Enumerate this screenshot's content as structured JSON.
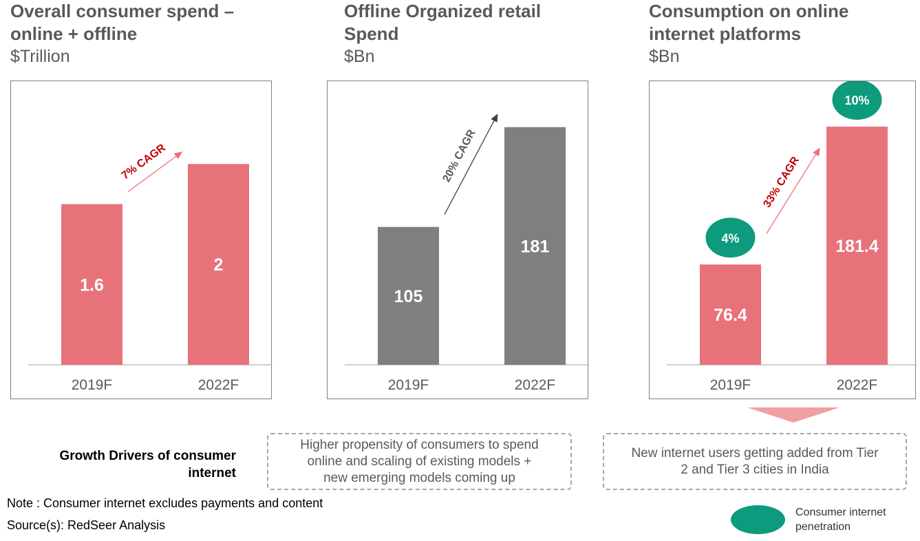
{
  "colors": {
    "red_bar": "#e8727a",
    "grey_bar": "#7f7f7f",
    "teal": "#0e9a7c",
    "cagr_red": "#c00000",
    "cagr_grey": "#595959"
  },
  "chart_data": [
    {
      "type": "bar",
      "title": "Overall consumer spend – online + offline",
      "unit": "$Trillion",
      "categories": [
        "2019F",
        "2022F"
      ],
      "values": [
        1.6,
        2
      ],
      "data_labels": [
        "1.6",
        "2"
      ],
      "annotation": "7% CAGR",
      "ylim": [
        0,
        2.55
      ],
      "bar_color": "#e8727a"
    },
    {
      "type": "bar",
      "title": "Offline Organized retail Spend",
      "unit": "$Bn",
      "categories": [
        "2019F",
        "2022F"
      ],
      "values": [
        105,
        181
      ],
      "data_labels": [
        "105",
        "181"
      ],
      "annotation": "20% CAGR",
      "ylim": [
        0,
        195
      ],
      "bar_color": "#7f7f7f"
    },
    {
      "type": "bar",
      "title": "Consumption on online internet platforms",
      "unit": "$Bn",
      "categories": [
        "2019F",
        "2022F"
      ],
      "values": [
        76.4,
        181.4
      ],
      "data_labels": [
        "76.4",
        "181.4"
      ],
      "annotation": "33% CAGR",
      "penetration": [
        "4%",
        "10%"
      ],
      "ylim": [
        0,
        195
      ],
      "bar_color": "#e8727a"
    }
  ],
  "titles": [
    {
      "line1": "Overall consumer spend –",
      "line2": "online + offline",
      "unit": "$Trillion"
    },
    {
      "line1": "Offline Organized retail",
      "line2": "Spend",
      "unit": "$Bn"
    },
    {
      "line1": "Consumption on online",
      "line2": "internet platforms",
      "unit": "$Bn"
    }
  ],
  "growth_drivers": {
    "label_line1": "Growth Drivers of consumer",
    "label_line2": "internet",
    "box1": [
      "Higher propensity of consumers to spend",
      "online and scaling of existing models +",
      "new emerging models coming up"
    ],
    "box2": [
      "New internet users getting added from Tier",
      "2 and Tier 3 cities in India"
    ]
  },
  "footer": {
    "note": "Note : Consumer internet excludes payments and content",
    "source": "Source(s): RedSeer Analysis"
  },
  "legend": {
    "line1": "Consumer internet",
    "line2": "penetration"
  }
}
